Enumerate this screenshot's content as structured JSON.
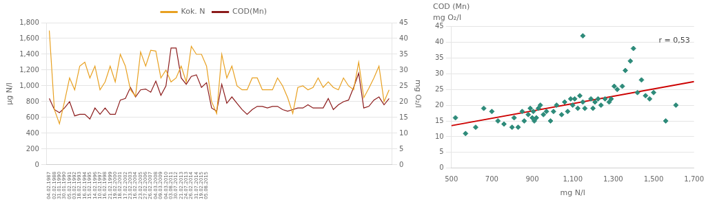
{
  "chart_data": [
    {
      "type": "line",
      "categories": [
        "04.02.1987",
        "02.02.1988",
        "31.01.1990",
        "30.01.1990",
        "05.02.1991",
        "03.02.1992",
        "18.02.1993",
        "16.02.1994",
        "15.02.1995",
        "14.02.1996",
        "10.02.1997",
        "16.02.1998",
        "21.02.1999",
        "19.02.2000",
        "18.02.2001",
        "17.02.2002",
        "23.02.2003",
        "16.02.2004",
        "23.02.2005",
        "27.02.2006",
        "26.02.2007",
        "04.03.2008",
        "09.03.2009",
        "04.03.2010",
        "03.08.2011",
        "30.07.2012",
        "21.02.2013",
        "24.07.2013",
        "26.02.2014",
        "31.07.2014",
        "19.02.2015",
        "05.08.2015",
        null,
        null,
        null,
        null,
        null,
        null,
        null,
        null,
        null,
        null,
        null,
        null,
        null,
        null,
        null,
        null,
        null,
        null,
        null,
        null,
        null,
        null,
        null,
        null,
        null,
        null,
        null,
        null,
        null,
        null,
        null,
        null,
        null,
        null,
        null,
        null
      ],
      "series": [
        {
          "name": "Kok. N",
          "color": "#E8A020",
          "values": [
            1700,
            700,
            520,
            800,
            1100,
            950,
            1250,
            1300,
            1100,
            1250,
            950,
            1050,
            1250,
            1050,
            1400,
            1250,
            950,
            870,
            1430,
            1250,
            1450,
            1440,
            1100,
            1200,
            1050,
            1100,
            1250,
            1050,
            1500,
            1400,
            1400,
            1250,
            800,
            650,
            1400,
            1100,
            1250,
            1000,
            950,
            950,
            1100,
            1100,
            950,
            950,
            950,
            1100,
            1000,
            850,
            650,
            980,
            1000,
            950,
            980,
            1100,
            980,
            1050,
            980,
            950,
            1100,
            1000,
            950,
            1300,
            850,
            970,
            1100,
            1250,
            800,
            950
          ]
        },
        {
          "name": "COD(Mn)",
          "color": "#8B1A1A",
          "values": [
            840,
            700,
            660,
            720,
            800,
            620,
            640,
            640,
            580,
            720,
            640,
            720,
            640,
            640,
            820,
            840,
            980,
            860,
            950,
            960,
            920,
            1060,
            880,
            1000,
            1480,
            1480,
            1100,
            1020,
            1120,
            1140,
            980,
            1040,
            720,
            680,
            1020,
            780,
            860,
            780,
            700,
            640,
            700,
            740,
            740,
            720,
            740,
            740,
            700,
            680,
            700,
            720,
            720,
            760,
            720,
            720,
            720,
            840,
            700,
            760,
            800,
            820,
            980,
            1160,
            720,
            740,
            820,
            860,
            760,
            840
          ]
        }
      ],
      "y_label": "μg N/l",
      "y2_label": "mg O₂/l",
      "ylim": [
        0,
        1800
      ],
      "yticks": [
        0,
        200,
        400,
        600,
        800,
        1000,
        1200,
        1400,
        1600,
        1800
      ],
      "y2lim": [
        0,
        45
      ],
      "y2ticks": [
        0,
        5,
        10,
        15,
        20,
        25,
        30,
        35,
        40,
        45
      ],
      "grid": "y",
      "legend": "top"
    },
    {
      "type": "scatter",
      "title": "COD (Mn)",
      "subtitle": "mg O₂/l",
      "x_label": "mg N/l",
      "annotation": "r = 0,53",
      "series": [
        {
          "type": "scatter",
          "color": "#2E8B7A",
          "marker": "diamond",
          "x": [
            520,
            570,
            620,
            660,
            700,
            730,
            760,
            800,
            810,
            830,
            850,
            860,
            880,
            890,
            900,
            905,
            910,
            920,
            930,
            940,
            955,
            970,
            990,
            1005,
            1020,
            1045,
            1060,
            1075,
            1090,
            1100,
            1110,
            1125,
            1135,
            1150,
            1160,
            1190,
            1200,
            1210,
            1225,
            1240,
            1150,
            1260,
            1280,
            1290,
            1305,
            1320,
            1345,
            1360,
            1385,
            1400,
            1420,
            1440,
            1460,
            1480,
            1500,
            1560,
            1610
          ],
          "values": [
            16,
            11,
            13,
            19,
            18,
            15,
            14,
            13,
            16,
            13,
            18,
            15,
            17,
            19,
            16,
            18,
            15,
            16,
            19,
            20,
            17,
            18,
            15,
            18,
            20,
            17,
            21,
            18,
            22,
            20,
            22,
            19,
            23,
            21,
            19,
            22,
            19,
            21,
            22,
            20,
            42,
            22,
            21,
            22,
            26,
            25,
            26,
            31,
            34,
            38,
            24,
            28,
            23,
            22,
            24,
            15,
            20
          ]
        },
        {
          "type": "line",
          "color": "#CC0000",
          "x": [
            500,
            1700
          ],
          "values": [
            13.5,
            27.5
          ]
        }
      ],
      "xlim": [
        500,
        1700
      ],
      "ylim": [
        0,
        45
      ],
      "xticks": [
        500,
        700,
        900,
        1100,
        1300,
        1500,
        1700
      ],
      "yticks": [
        0,
        5,
        10,
        15,
        20,
        25,
        30,
        35,
        40,
        45
      ],
      "grid": "y"
    }
  ]
}
